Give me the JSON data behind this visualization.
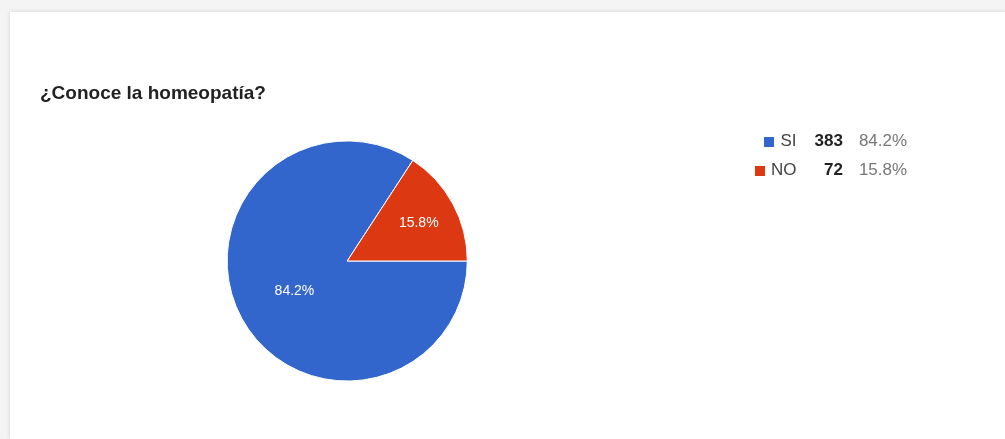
{
  "chart_data": {
    "type": "pie",
    "title": "¿Conoce la homeopatía?",
    "categories": [
      "SI",
      "NO"
    ],
    "values": [
      84.2,
      15.8
    ],
    "colors": [
      "#3366cc",
      "#dc3912"
    ],
    "value_labels": [
      "84.2%",
      "15.8%"
    ],
    "annotations": [
      "383",
      "72"
    ],
    "legend": "right"
  }
}
